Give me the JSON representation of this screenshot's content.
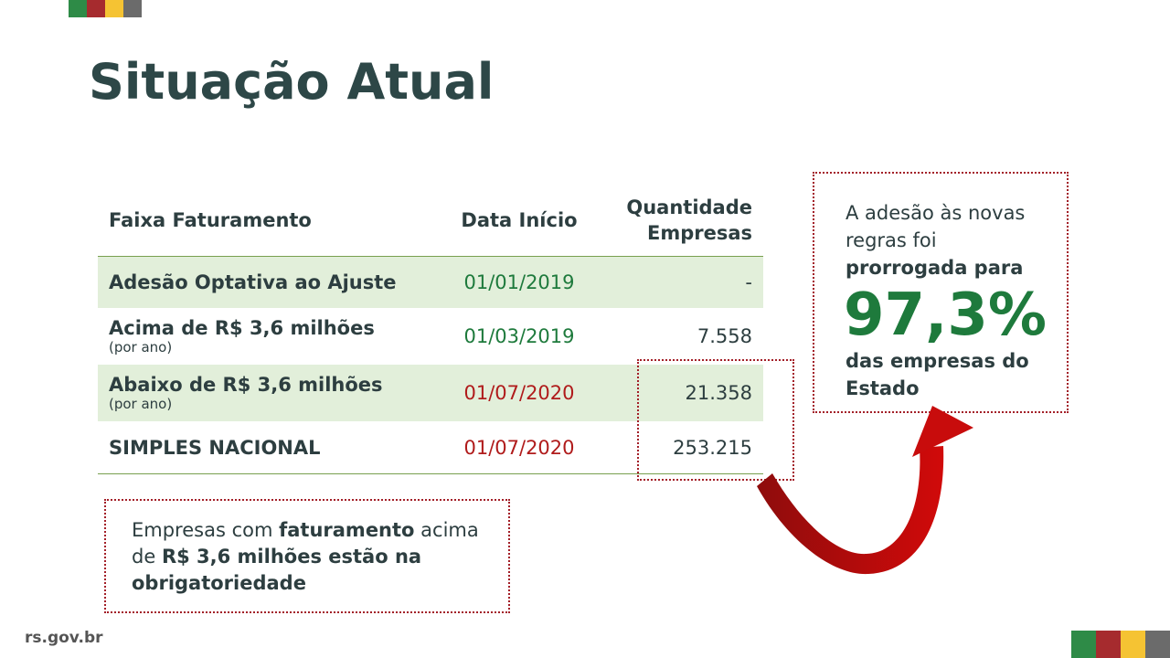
{
  "title": "Situação Atual",
  "colors": {
    "flag_green": "#2e8b47",
    "flag_red": "#a62b2e",
    "flag_yellow": "#f5c333",
    "flag_gray": "#6b6b6b",
    "accent_green": "#1e7a3c",
    "accent_red": "#b01b1b",
    "row_shade": "#e2efda"
  },
  "table": {
    "headers": {
      "col1": "Faixa Faturamento",
      "col2": "Data Início",
      "col3_line1": "Quantidade",
      "col3_line2": "Empresas"
    },
    "rows": [
      {
        "name": "Adesão Optativa ao Ajuste",
        "sub": "",
        "date": "01/01/2019",
        "qty": "-"
      },
      {
        "name": "Acima de R$ 3,6 milhões",
        "sub": "(por ano)",
        "date": "01/03/2019",
        "qty": "7.558"
      },
      {
        "name": "Abaixo de R$ 3,6 milhões",
        "sub": "(por ano)",
        "date": "01/07/2020",
        "qty": "21.358"
      },
      {
        "name": "SIMPLES NACIONAL",
        "sub": "",
        "date": "01/07/2020",
        "qty": "253.215"
      }
    ]
  },
  "note": {
    "part1": "Empresas com ",
    "bold1": "faturamento",
    "part2": " acima de ",
    "bold2": "R$ 3,6 milhões estão na obrigatoriedade"
  },
  "info": {
    "line1": "A adesão às novas regras foi ",
    "bold1": "prorrogada para",
    "percent": "97,3%",
    "bold2": "das empresas do Estado"
  },
  "icons": {
    "arrow": "curved-arrow-icon"
  },
  "footer": {
    "url": "rs.gov.br"
  }
}
